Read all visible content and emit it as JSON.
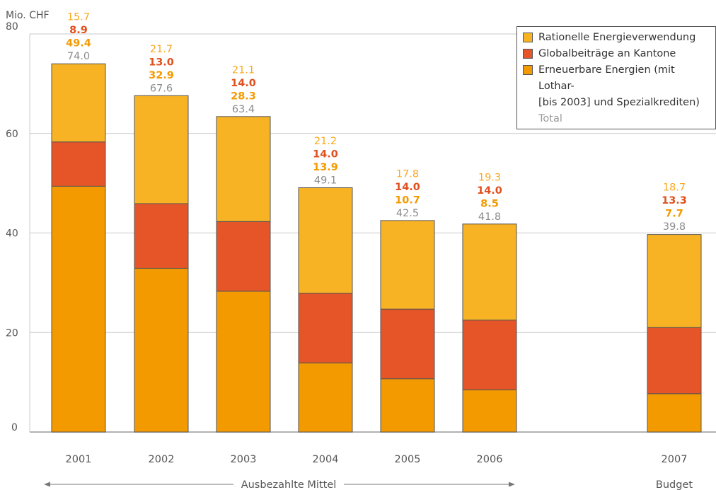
{
  "chart_data": {
    "type": "bar",
    "stacked": true,
    "unit_label": "Mio. CHF",
    "ylim": [
      0,
      80
    ],
    "y_ticks": [
      0,
      20,
      40,
      60,
      80
    ],
    "grid": true,
    "categories": [
      "2001",
      "2002",
      "2003",
      "2004",
      "2005",
      "2006",
      "2007"
    ],
    "series": [
      {
        "name": "Erneuerbare Energien (mit Lothar- [bis 2003] und Spezialkrediten)",
        "color": "#f39a00",
        "values": [
          49.4,
          32.9,
          28.3,
          13.9,
          10.7,
          8.5,
          7.7
        ]
      },
      {
        "name": "Globalbeiträge an Kantone",
        "color": "#e65527",
        "values": [
          8.9,
          13.0,
          14.0,
          14.0,
          14.0,
          14.0,
          13.3
        ]
      },
      {
        "name": "Rationelle Energieverwendung",
        "color": "#f8b325",
        "values": [
          15.7,
          21.7,
          21.1,
          21.2,
          17.8,
          19.3,
          18.7
        ]
      }
    ],
    "labels": {
      "rationelle": [
        "15.7",
        "21.7",
        "21.1",
        "21.2",
        "17.8",
        "19.3",
        "18.7"
      ],
      "global": [
        "8.9",
        "13.0",
        "14.0",
        "14.0",
        "14.0",
        "14.0",
        "13.3"
      ],
      "erneuerbare": [
        "49.4",
        "32.9",
        "28.3",
        "13.9",
        "10.7",
        "8.5",
        "7.7"
      ],
      "total": [
        "74.0",
        "67.6",
        "63.4",
        "49.1",
        "42.5",
        "41.8",
        "39.8"
      ]
    },
    "label_colors": {
      "rationelle": "#f8a91f",
      "global": "#e0501e",
      "erneuerbare": "#f39a00",
      "total": "#8c8c8c"
    },
    "legend": {
      "placement": "top-right",
      "items": [
        {
          "label": "Rationelle Energieverwendung",
          "color": "#f8b325"
        },
        {
          "label": "Globalbeiträge an Kantone",
          "color": "#e65527"
        },
        {
          "label": "Erneuerbare Energien (mit Lothar-",
          "label2": "[bis 2003] und Spezialkrediten)",
          "color": "#f39a00"
        }
      ],
      "total_label": "Total"
    },
    "range_label": "Ausbezahlte Mittel",
    "budget_label": "Budget"
  }
}
